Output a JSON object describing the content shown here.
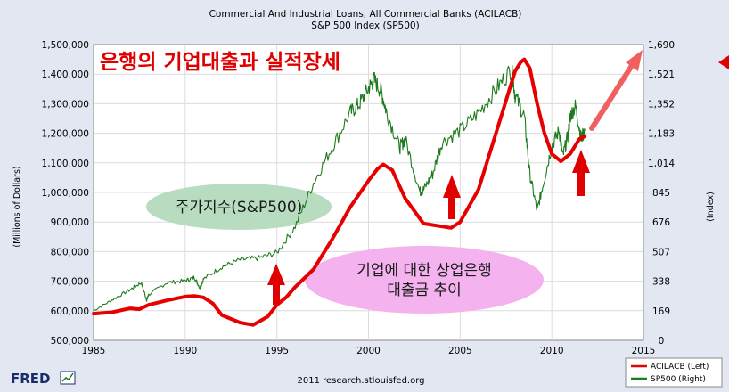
{
  "chart_data": {
    "type": "line",
    "title": "Commercial And Industrial Loans, All Commercial Banks (ACILACB)",
    "subtitle": "S&P 500 Index (SP500)",
    "ylabel_left": "(Millions of Dollars)",
    "ylabel_right": "(Index)",
    "xlim": [
      1985,
      2015
    ],
    "ylim_left": [
      500000,
      1500000
    ],
    "ylim_right": [
      0,
      1690
    ],
    "x_ticks": [
      "1985",
      "1990",
      "1995",
      "2000",
      "2005",
      "2010",
      "2015"
    ],
    "y_ticks_left": [
      "500,000",
      "600,000",
      "700,000",
      "800,000",
      "900,000",
      "1,000,000",
      "1,100,000",
      "1,200,000",
      "1,300,000",
      "1,400,000",
      "1,500,000"
    ],
    "y_ticks_right": [
      "0",
      "169",
      "338",
      "507",
      "676",
      "845",
      "1,014",
      "1,183",
      "1,352",
      "1,521",
      "1,690"
    ],
    "grid": true,
    "legend_position": "bottom-right",
    "series": [
      {
        "name": "ACILACB (Left)",
        "axis": "left",
        "color": "#e60000",
        "x": [
          1985,
          1986,
          1987,
          1987.5,
          1988,
          1989,
          1990,
          1990.5,
          1991,
          1991.5,
          1992,
          1993,
          1993.7,
          1994.5,
          1995,
          1995.5,
          1996,
          1997,
          1998,
          1999,
          2000,
          2000.5,
          2000.8,
          2001.3,
          2002,
          2003,
          2004,
          2004.5,
          2005,
          2006,
          2007,
          2008,
          2008.3,
          2008.5,
          2008.8,
          2009.2,
          2009.6,
          2010,
          2010.5,
          2011,
          2011.5,
          2011.8
        ],
        "y": [
          590000,
          595000,
          608000,
          605000,
          620000,
          635000,
          648000,
          650000,
          645000,
          625000,
          585000,
          560000,
          552000,
          580000,
          620000,
          645000,
          680000,
          740000,
          840000,
          950000,
          1040000,
          1080000,
          1095000,
          1075000,
          980000,
          895000,
          885000,
          880000,
          900000,
          1010000,
          1210000,
          1410000,
          1440000,
          1450000,
          1420000,
          1300000,
          1200000,
          1130000,
          1105000,
          1130000,
          1180000,
          1190000
        ]
      },
      {
        "name": "SP500 (Right)",
        "axis": "right",
        "color": "#1d7a1d",
        "x": [
          1985,
          1986,
          1987,
          1987.6,
          1987.9,
          1988,
          1989,
          1990,
          1990.5,
          1990.8,
          1991,
          1992,
          1993,
          1994,
          1995,
          1996,
          1997,
          1998,
          1999,
          1999.5,
          2000,
          2000.3,
          2000.7,
          2001,
          2001.7,
          2002,
          2002.8,
          2003,
          2003.5,
          2004,
          2005,
          2006,
          2007,
          2007.8,
          2008,
          2008.5,
          2008.8,
          2009.2,
          2009.5,
          2010,
          2010.4,
          2010.6,
          2010.9,
          2011,
          2011.3,
          2011.6,
          2011.8
        ],
        "y": [
          170,
          230,
          290,
          330,
          230,
          260,
          330,
          340,
          360,
          300,
          350,
          420,
          460,
          470,
          500,
          650,
          900,
          1100,
          1300,
          1350,
          1440,
          1490,
          1420,
          1300,
          1100,
          1150,
          850,
          860,
          950,
          1130,
          1200,
          1300,
          1440,
          1550,
          1400,
          1280,
          950,
          740,
          880,
          1110,
          1200,
          1050,
          1180,
          1280,
          1340,
          1150,
          1200
        ]
      }
    ]
  },
  "annotations": {
    "headline": "은행의 기업대출과 실적장세",
    "stock_label": "주가지수(S&P500)",
    "loan_label_1": "기업에 대한 상업은행",
    "loan_label_2": "대출금 추이"
  },
  "colors": {
    "background": "#e2e7f1",
    "plot": "#ffffff",
    "annotation_red": "#e00000",
    "stock_ellipse": "#b8dcc0",
    "loan_ellipse": "#f4b2ee"
  },
  "footer": {
    "logo": "FRED",
    "source": "2011 research.stlouisfed.org"
  }
}
